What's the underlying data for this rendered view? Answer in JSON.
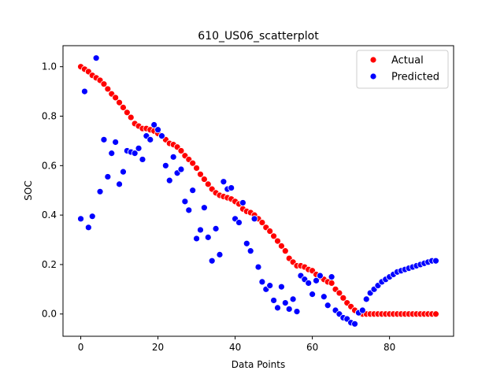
{
  "chart_data": {
    "type": "scatter",
    "title": "610_US06_scatterplot",
    "xlabel": "Data Points",
    "ylabel": "SOC",
    "xlim": [
      -4.6,
      96.6
    ],
    "ylim": [
      -0.09,
      1.085
    ],
    "xticks": [
      0,
      20,
      40,
      60,
      80
    ],
    "xtick_labels": [
      "0",
      "20",
      "40",
      "60",
      "80"
    ],
    "yticks": [
      0.0,
      0.2,
      0.4,
      0.6,
      0.8,
      1.0
    ],
    "ytick_labels": [
      "0.0",
      "0.2",
      "0.4",
      "0.6",
      "0.8",
      "1.0"
    ],
    "grid": false,
    "legend_position": "top-right",
    "x": [
      0,
      1,
      2,
      3,
      4,
      5,
      6,
      7,
      8,
      9,
      10,
      11,
      12,
      13,
      14,
      15,
      16,
      17,
      18,
      19,
      20,
      21,
      22,
      23,
      24,
      25,
      26,
      27,
      28,
      29,
      30,
      31,
      32,
      33,
      34,
      35,
      36,
      37,
      38,
      39,
      40,
      41,
      42,
      43,
      44,
      45,
      46,
      47,
      48,
      49,
      50,
      51,
      52,
      53,
      54,
      55,
      56,
      57,
      58,
      59,
      60,
      61,
      62,
      63,
      64,
      65,
      66,
      67,
      68,
      69,
      70,
      71,
      72,
      73,
      74,
      75,
      76,
      77,
      78,
      79,
      80,
      81,
      82,
      83,
      84,
      85,
      86,
      87,
      88,
      89,
      90,
      91,
      92
    ],
    "series": [
      {
        "name": "Actual",
        "color": "#ff0000",
        "values": [
          1.0,
          0.99,
          0.98,
          0.965,
          0.955,
          0.945,
          0.93,
          0.91,
          0.89,
          0.875,
          0.855,
          0.835,
          0.815,
          0.795,
          0.77,
          0.76,
          0.75,
          0.75,
          0.745,
          0.74,
          0.73,
          0.72,
          0.705,
          0.69,
          0.685,
          0.675,
          0.66,
          0.64,
          0.625,
          0.61,
          0.59,
          0.565,
          0.545,
          0.525,
          0.505,
          0.49,
          0.48,
          0.475,
          0.47,
          0.465,
          0.455,
          0.445,
          0.425,
          0.415,
          0.41,
          0.4,
          0.385,
          0.37,
          0.35,
          0.335,
          0.315,
          0.295,
          0.275,
          0.255,
          0.225,
          0.21,
          0.195,
          0.195,
          0.19,
          0.18,
          0.175,
          0.16,
          0.15,
          0.14,
          0.13,
          0.125,
          0.1,
          0.085,
          0.065,
          0.045,
          0.03,
          0.015,
          0.005,
          0.0,
          0.0,
          0.0,
          0.0,
          0.0,
          0.0,
          0.0,
          0.0,
          0.0,
          0.0,
          0.0,
          0.0,
          0.0,
          0.0,
          0.0,
          0.0,
          0.0,
          0.0,
          0.0,
          0.0
        ]
      },
      {
        "name": "Predicted",
        "color": "#0000ff",
        "values": [
          0.385,
          0.9,
          0.35,
          0.395,
          1.035,
          0.495,
          0.705,
          0.555,
          0.65,
          0.695,
          0.525,
          0.575,
          0.66,
          0.655,
          0.65,
          0.67,
          0.625,
          0.72,
          0.705,
          0.765,
          0.745,
          0.72,
          0.6,
          0.54,
          0.635,
          0.57,
          0.585,
          0.455,
          0.42,
          0.5,
          0.305,
          0.34,
          0.43,
          0.31,
          0.215,
          0.345,
          0.24,
          0.535,
          0.505,
          0.51,
          0.385,
          0.37,
          0.45,
          0.285,
          0.255,
          0.385,
          0.19,
          0.13,
          0.1,
          0.115,
          0.055,
          0.025,
          0.11,
          0.045,
          0.02,
          0.06,
          0.01,
          0.155,
          0.14,
          0.125,
          0.08,
          0.135,
          0.155,
          0.07,
          0.035,
          0.15,
          0.015,
          0.0,
          -0.015,
          -0.02,
          -0.035,
          -0.04,
          0.005,
          0.015,
          0.06,
          0.085,
          0.1,
          0.115,
          0.13,
          0.14,
          0.15,
          0.16,
          0.17,
          0.175,
          0.18,
          0.185,
          0.19,
          0.195,
          0.2,
          0.205,
          0.21,
          0.215,
          0.215
        ]
      }
    ]
  }
}
